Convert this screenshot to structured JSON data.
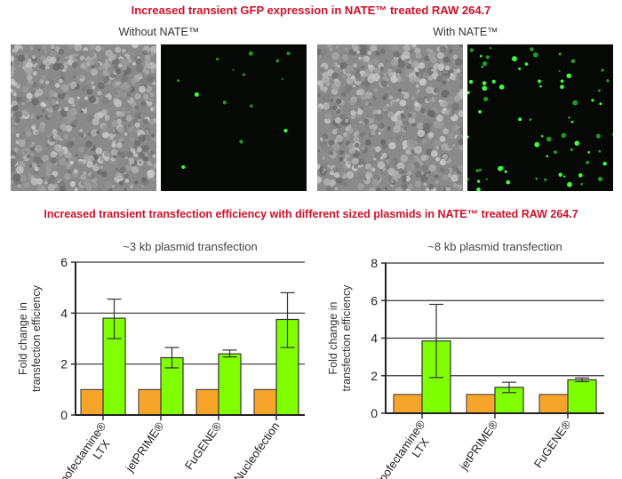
{
  "title_top": "Increased transient GFP expression in NATE™ treated RAW 264.7",
  "panel_left_label": "Without NATE™",
  "panel_right_label": "With NATE™",
  "title_bottom": "Increased transient transfection efficiency with different sized plasmids in NATE™ treated RAW 264.7",
  "colors": {
    "title": "#d0112b",
    "control_bar": "#f7a42b",
    "nate_bar": "#80ff00"
  },
  "chart_data": [
    {
      "type": "bar",
      "title": "~3 kb plasmid transfection",
      "ylabel": "Fold change in transfection efficiency",
      "ylim": [
        0,
        6
      ],
      "yticks": [
        0,
        2,
        4,
        6
      ],
      "grid": true,
      "categories": [
        "Lipofectamine® LTX",
        "jetPRIME®",
        "FuGENE®",
        "Nucleofection"
      ],
      "series": [
        {
          "values": [
            1,
            1,
            1,
            1
          ],
          "color": "#f7a42b"
        },
        {
          "values": [
            3.8,
            2.25,
            2.4,
            3.75
          ],
          "error_low": [
            3.0,
            1.85,
            2.28,
            2.65
          ],
          "error_high": [
            4.55,
            2.65,
            2.55,
            4.8
          ],
          "color": "#80ff00"
        }
      ]
    },
    {
      "type": "bar",
      "title": "~8 kb plasmid transfection",
      "ylabel": "Fold change in transfection efficiency",
      "ylim": [
        0,
        8
      ],
      "yticks": [
        0,
        2,
        4,
        6,
        8
      ],
      "grid": true,
      "categories": [
        "Lipofectamine® LTX",
        "jetPRIME®",
        "FuGENE®"
      ],
      "series": [
        {
          "values": [
            1,
            1,
            1
          ],
          "color": "#f7a42b"
        },
        {
          "values": [
            3.85,
            1.38,
            1.78
          ],
          "error_low": [
            1.9,
            1.1,
            1.68
          ],
          "error_high": [
            5.8,
            1.65,
            1.88
          ],
          "color": "#80ff00"
        }
      ]
    }
  ]
}
